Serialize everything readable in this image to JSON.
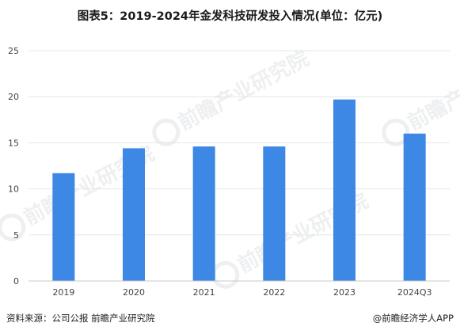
{
  "title": "图表5：2019-2024年金发科技研发投入情况(单位：亿元)",
  "footer": {
    "source": "资料来源：公司公报 前瞻产业研究院",
    "brand": "@前瞻经济学人APP"
  },
  "watermark": {
    "text": "前瞻产业研究院"
  },
  "colors": {
    "bar": "#3d87e5",
    "grid": "#e6e6e6",
    "axis": "#c8c8c8",
    "tick": "#444444"
  },
  "chart_data": {
    "type": "bar",
    "title": "图表5：2019-2024年金发科技研发投入情况(单位：亿元)",
    "categories": [
      "2019",
      "2020",
      "2021",
      "2022",
      "2023",
      "2024Q3"
    ],
    "values": [
      11.7,
      14.4,
      14.6,
      14.6,
      19.7,
      16.0
    ],
    "ylim": [
      0,
      25
    ],
    "yticks": [
      0,
      5,
      10,
      15,
      20,
      25
    ],
    "grid": true,
    "xlabel": "",
    "ylabel": ""
  }
}
